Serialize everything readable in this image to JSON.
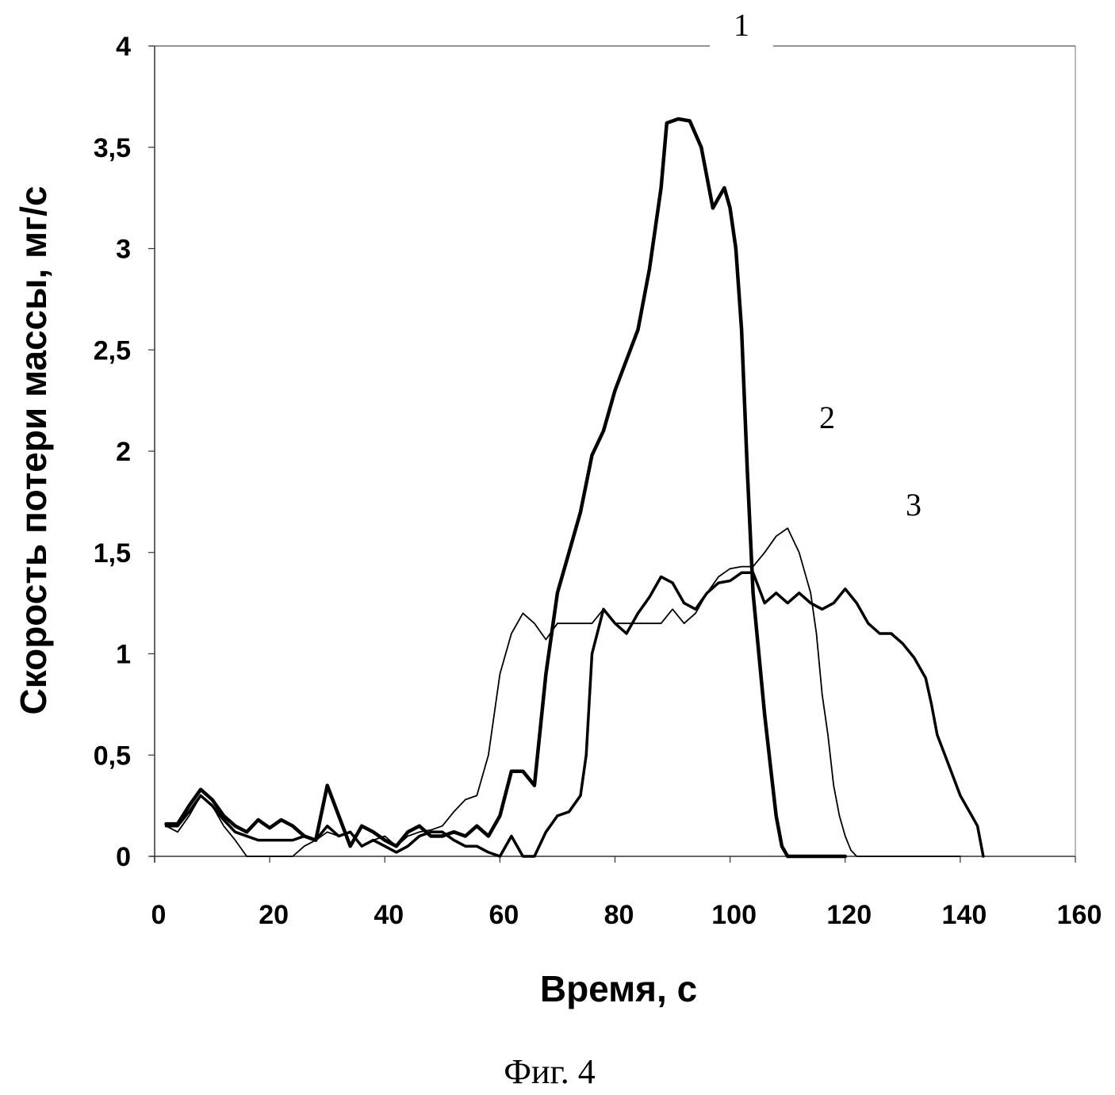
{
  "chart_data": {
    "type": "line",
    "title": "",
    "caption": "Фиг. 4",
    "xlabel": "Время, с",
    "ylabel": "Скорость потери массы, мг/с",
    "xlim": [
      0,
      160
    ],
    "ylim": [
      0,
      4
    ],
    "xticks": [
      "0",
      "20",
      "40",
      "60",
      "80",
      "100",
      "120",
      "140",
      "160"
    ],
    "yticks": [
      "0",
      "0,5",
      "1",
      "1,5",
      "2",
      "2,5",
      "3",
      "3,5",
      "4"
    ],
    "grid": false,
    "curve_labels": [
      "1",
      "2",
      "3"
    ],
    "series": [
      {
        "name": "1",
        "stroke": "thick",
        "x": [
          2,
          4,
          6,
          8,
          10,
          12,
          14,
          16,
          18,
          20,
          22,
          24,
          26,
          28,
          30,
          32,
          34,
          36,
          38,
          40,
          42,
          44,
          46,
          48,
          50,
          52,
          54,
          56,
          58,
          60,
          62,
          64,
          66,
          68,
          70,
          72,
          74,
          76,
          78,
          80,
          82,
          84,
          86,
          88,
          89,
          91,
          93,
          95,
          97,
          98,
          99,
          100,
          101,
          102,
          103,
          104,
          105,
          106,
          107,
          108,
          109,
          110,
          115,
          120
        ],
        "y": [
          0.16,
          0.16,
          0.25,
          0.33,
          0.28,
          0.2,
          0.15,
          0.12,
          0.18,
          0.14,
          0.18,
          0.15,
          0.1,
          0.08,
          0.35,
          0.2,
          0.05,
          0.15,
          0.12,
          0.08,
          0.05,
          0.12,
          0.15,
          0.1,
          0.1,
          0.12,
          0.1,
          0.15,
          0.1,
          0.2,
          0.42,
          0.42,
          0.35,
          0.9,
          1.3,
          1.5,
          1.7,
          1.98,
          2.1,
          2.3,
          2.45,
          2.6,
          2.9,
          3.3,
          3.62,
          3.64,
          3.63,
          3.5,
          3.2,
          3.25,
          3.3,
          3.2,
          3.0,
          2.6,
          1.9,
          1.3,
          1.0,
          0.7,
          0.45,
          0.2,
          0.05,
          0.0,
          0.0,
          0.0
        ]
      },
      {
        "name": "2",
        "stroke": "thin",
        "x": [
          2,
          4,
          6,
          8,
          10,
          12,
          14,
          16,
          18,
          20,
          22,
          24,
          26,
          28,
          30,
          32,
          34,
          36,
          38,
          40,
          42,
          44,
          46,
          48,
          50,
          52,
          54,
          56,
          58,
          60,
          62,
          64,
          66,
          68,
          70,
          72,
          74,
          76,
          78,
          80,
          82,
          84,
          86,
          88,
          90,
          92,
          94,
          96,
          98,
          100,
          102,
          104,
          106,
          108,
          110,
          112,
          114,
          115,
          116,
          117,
          118,
          119,
          120,
          121,
          122,
          130,
          140
        ],
        "y": [
          0.15,
          0.12,
          0.2,
          0.3,
          0.25,
          0.15,
          0.08,
          0.0,
          0.0,
          0.0,
          0.0,
          0.0,
          0.05,
          0.08,
          0.12,
          0.1,
          0.12,
          0.05,
          0.08,
          0.1,
          0.05,
          0.1,
          0.12,
          0.13,
          0.15,
          0.22,
          0.28,
          0.3,
          0.5,
          0.9,
          1.1,
          1.2,
          1.15,
          1.07,
          1.15,
          1.15,
          1.15,
          1.15,
          1.22,
          1.15,
          1.15,
          1.15,
          1.15,
          1.15,
          1.22,
          1.15,
          1.2,
          1.3,
          1.38,
          1.42,
          1.43,
          1.43,
          1.5,
          1.58,
          1.62,
          1.5,
          1.3,
          1.1,
          0.8,
          0.6,
          0.35,
          0.2,
          0.1,
          0.03,
          0.0,
          0.0,
          0.0
        ]
      },
      {
        "name": "3",
        "stroke": "medium",
        "x": [
          2,
          4,
          6,
          8,
          10,
          12,
          14,
          16,
          18,
          20,
          22,
          24,
          26,
          28,
          30,
          32,
          34,
          36,
          38,
          40,
          42,
          44,
          46,
          48,
          50,
          52,
          54,
          56,
          58,
          60,
          62,
          64,
          66,
          68,
          70,
          72,
          74,
          75,
          76,
          78,
          80,
          82,
          84,
          86,
          88,
          90,
          92,
          94,
          96,
          98,
          100,
          102,
          104,
          106,
          108,
          110,
          112,
          114,
          116,
          118,
          120,
          122,
          124,
          126,
          128,
          130,
          132,
          134,
          135,
          136,
          138,
          140,
          142,
          143,
          144
        ],
        "y": [
          0.15,
          0.15,
          0.22,
          0.3,
          0.25,
          0.18,
          0.12,
          0.1,
          0.08,
          0.08,
          0.08,
          0.08,
          0.1,
          0.08,
          0.15,
          0.1,
          0.12,
          0.05,
          0.08,
          0.05,
          0.02,
          0.05,
          0.1,
          0.12,
          0.12,
          0.08,
          0.05,
          0.05,
          0.02,
          0.0,
          0.1,
          0.0,
          0.0,
          0.12,
          0.2,
          0.22,
          0.3,
          0.5,
          1.0,
          1.22,
          1.15,
          1.1,
          1.2,
          1.28,
          1.38,
          1.35,
          1.25,
          1.22,
          1.3,
          1.35,
          1.36,
          1.4,
          1.4,
          1.25,
          1.3,
          1.25,
          1.3,
          1.25,
          1.22,
          1.25,
          1.32,
          1.25,
          1.15,
          1.1,
          1.1,
          1.05,
          0.98,
          0.88,
          0.75,
          0.6,
          0.45,
          0.3,
          0.2,
          0.15,
          0.0
        ]
      }
    ]
  }
}
